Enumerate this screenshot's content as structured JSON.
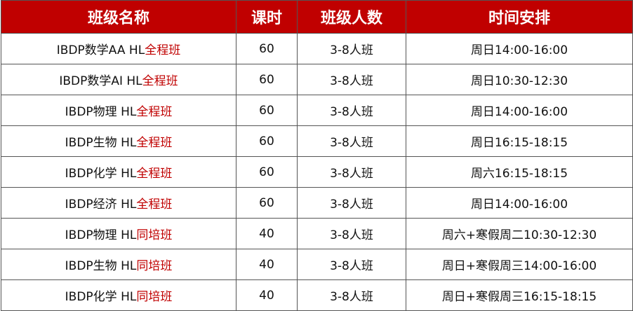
{
  "colors": {
    "header_bg": "#c00000",
    "highlight": "#c00000"
  },
  "headers": [
    "班级名称",
    "课时",
    "班级人数",
    "时间安排"
  ],
  "rows": [
    {
      "name": "IBDP数学AA HL",
      "type": "全程班",
      "hours": "60",
      "size": "3-8人班",
      "time": "周日14:00-16:00"
    },
    {
      "name": "IBDP数学AI HL",
      "type": "全程班",
      "hours": "60",
      "size": "3-8人班",
      "time": "周日10:30-12:30"
    },
    {
      "name": "IBDP物理 HL",
      "type": "全程班",
      "hours": "60",
      "size": "3-8人班",
      "time": "周日14:00-16:00"
    },
    {
      "name": "IBDP生物 HL",
      "type": "全程班",
      "hours": "60",
      "size": "3-8人班",
      "time": "周日16:15-18:15"
    },
    {
      "name": "IBDP化学 HL",
      "type": "全程班",
      "hours": "60",
      "size": "3-8人班",
      "time": "周六16:15-18:15"
    },
    {
      "name": "IBDP经济 HL",
      "type": "全程班",
      "hours": "60",
      "size": "3-8人班",
      "time": "周日14:00-16:00"
    },
    {
      "name": "IBDP物理 HL",
      "type": "同培班",
      "hours": "40",
      "size": "3-8人班",
      "time": "周六+寒假周二10:30-12:30"
    },
    {
      "name": "IBDP生物 HL",
      "type": "同培班",
      "hours": "40",
      "size": "3-8人班",
      "time": "周日+寒假周三14:00-16:00"
    },
    {
      "name": "IBDP化学 HL",
      "type": "同培班",
      "hours": "40",
      "size": "3-8人班",
      "time": "周日+寒假周三16:15-18:15"
    }
  ]
}
